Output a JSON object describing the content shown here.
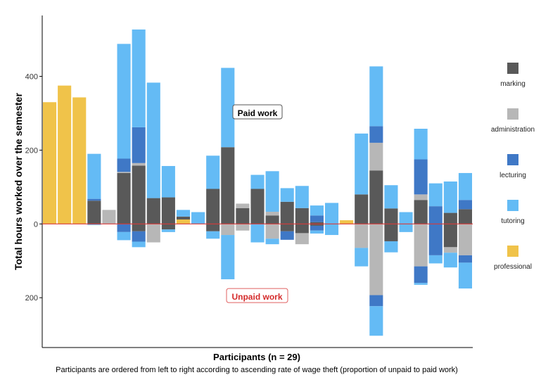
{
  "chart_data": {
    "type": "bar",
    "subtype": "diverging-stacked",
    "ylabel": "Total hours worked over the semester",
    "xlabel": "Participants (n = 29)",
    "caption": "Participants are ordered from left to right according to ascending rate of wage theft (proportion of unpaid to paid work)",
    "ylim": [
      -335,
      565
    ],
    "yticks": [
      {
        "value": 400,
        "label": "400"
      },
      {
        "value": 200,
        "label": "200"
      },
      {
        "value": 0,
        "label": "0"
      },
      {
        "value": -200,
        "label": "200"
      }
    ],
    "annotations": {
      "paid": {
        "text": "Paid work",
        "value": 300
      },
      "unpaid": {
        "text": "Unpaid work",
        "value": -198
      }
    },
    "series": [
      {
        "key": "marking",
        "name": "marking",
        "color": "#595959"
      },
      {
        "key": "administration",
        "name": "administration",
        "color": "#b7b7b7"
      },
      {
        "key": "lecturing",
        "name": "lecturing",
        "color": "#3f78c6"
      },
      {
        "key": "tutoring",
        "name": "tutoring",
        "color": "#64bbf5"
      },
      {
        "key": "professional",
        "name": "professional",
        "color": "#f0c34a"
      }
    ],
    "participants": [
      {
        "id": 1,
        "paid": {
          "professional": 330
        },
        "unpaid": {}
      },
      {
        "id": 2,
        "paid": {
          "professional": 375
        },
        "unpaid": {}
      },
      {
        "id": 3,
        "paid": {
          "professional": 343
        },
        "unpaid": {}
      },
      {
        "id": 4,
        "paid": {
          "marking": 63,
          "lecturing": 5,
          "tutoring": 122
        },
        "unpaid": {
          "tutoring": 3
        }
      },
      {
        "id": 5,
        "paid": {
          "administration": 38
        },
        "unpaid": {}
      },
      {
        "id": 6,
        "paid": {
          "marking": 138,
          "administration": 3,
          "lecturing": 36,
          "tutoring": 311
        },
        "unpaid": {
          "tutoring": 22,
          "lecturing": 22
        }
      },
      {
        "id": 7,
        "paid": {
          "marking": 158,
          "administration": 7,
          "lecturing": 97,
          "tutoring": 265
        },
        "unpaid": {
          "marking": 20,
          "lecturing": 28,
          "tutoring": 15
        }
      },
      {
        "id": 8,
        "paid": {
          "marking": 70,
          "tutoring": 313
        },
        "unpaid": {
          "administration": 50
        }
      },
      {
        "id": 9,
        "paid": {
          "marking": 72,
          "tutoring": 85
        },
        "unpaid": {
          "marking": 15,
          "tutoring": 7
        }
      },
      {
        "id": 10,
        "paid": {
          "professional": 12,
          "marking": 8,
          "tutoring": 18
        },
        "unpaid": {}
      },
      {
        "id": 11,
        "paid": {
          "tutoring": 32
        },
        "unpaid": {}
      },
      {
        "id": 12,
        "paid": {
          "marking": 95,
          "tutoring": 90
        },
        "unpaid": {
          "marking": 20,
          "tutoring": 20
        }
      },
      {
        "id": 13,
        "paid": {
          "marking": 208,
          "tutoring": 215
        },
        "unpaid": {
          "administration": 30,
          "tutoring": 120
        }
      },
      {
        "id": 14,
        "paid": {
          "marking": 43,
          "administration": 12
        },
        "unpaid": {
          "administration": 18
        }
      },
      {
        "id": 15,
        "paid": {
          "marking": 95,
          "tutoring": 38
        },
        "unpaid": {
          "tutoring": 50
        }
      },
      {
        "id": 16,
        "paid": {
          "marking": 23,
          "administration": 10,
          "tutoring": 110
        },
        "unpaid": {
          "administration": 40,
          "tutoring": 15
        }
      },
      {
        "id": 17,
        "paid": {
          "marking": 60,
          "tutoring": 37
        },
        "unpaid": {
          "marking": 20,
          "lecturing": 23
        }
      },
      {
        "id": 18,
        "paid": {
          "marking": 43,
          "tutoring": 60
        },
        "unpaid": {
          "marking": 25,
          "administration": 30
        }
      },
      {
        "id": 19,
        "paid": {
          "marking": 5,
          "lecturing": 18,
          "tutoring": 27
        },
        "unpaid": {
          "marking": 5,
          "lecturing": 13,
          "tutoring": 8
        }
      },
      {
        "id": 20,
        "paid": {
          "tutoring": 57
        },
        "unpaid": {
          "tutoring": 30
        }
      },
      {
        "id": 21,
        "paid": {
          "professional": 10
        },
        "unpaid": {}
      },
      {
        "id": 22,
        "paid": {
          "marking": 80,
          "tutoring": 165
        },
        "unpaid": {
          "administration": 65,
          "tutoring": 50
        }
      },
      {
        "id": 23,
        "paid": {
          "marking": 145,
          "administration": 75,
          "lecturing": 45,
          "tutoring": 162
        },
        "unpaid": {
          "administration": 193,
          "lecturing": 30,
          "tutoring": 80
        }
      },
      {
        "id": 24,
        "paid": {
          "marking": 42,
          "tutoring": 63
        },
        "unpaid": {
          "marking": 47,
          "tutoring": 30
        }
      },
      {
        "id": 25,
        "paid": {
          "tutoring": 32
        },
        "unpaid": {
          "tutoring": 22
        }
      },
      {
        "id": 26,
        "paid": {
          "marking": 65,
          "administration": 15,
          "lecturing": 95,
          "tutoring": 83
        },
        "unpaid": {
          "administration": 115,
          "lecturing": 45,
          "tutoring": 5
        }
      },
      {
        "id": 27,
        "paid": {
          "lecturing": 48,
          "tutoring": 62
        },
        "unpaid": {
          "lecturing": 85,
          "tutoring": 22
        }
      },
      {
        "id": 28,
        "paid": {
          "marking": 30,
          "tutoring": 85
        },
        "unpaid": {
          "marking": 63,
          "administration": 15,
          "tutoring": 40
        }
      },
      {
        "id": 29,
        "paid": {
          "marking": 40,
          "lecturing": 25,
          "tutoring": 73
        },
        "unpaid": {
          "administration": 85,
          "lecturing": 20,
          "tutoring": 70
        }
      }
    ]
  }
}
